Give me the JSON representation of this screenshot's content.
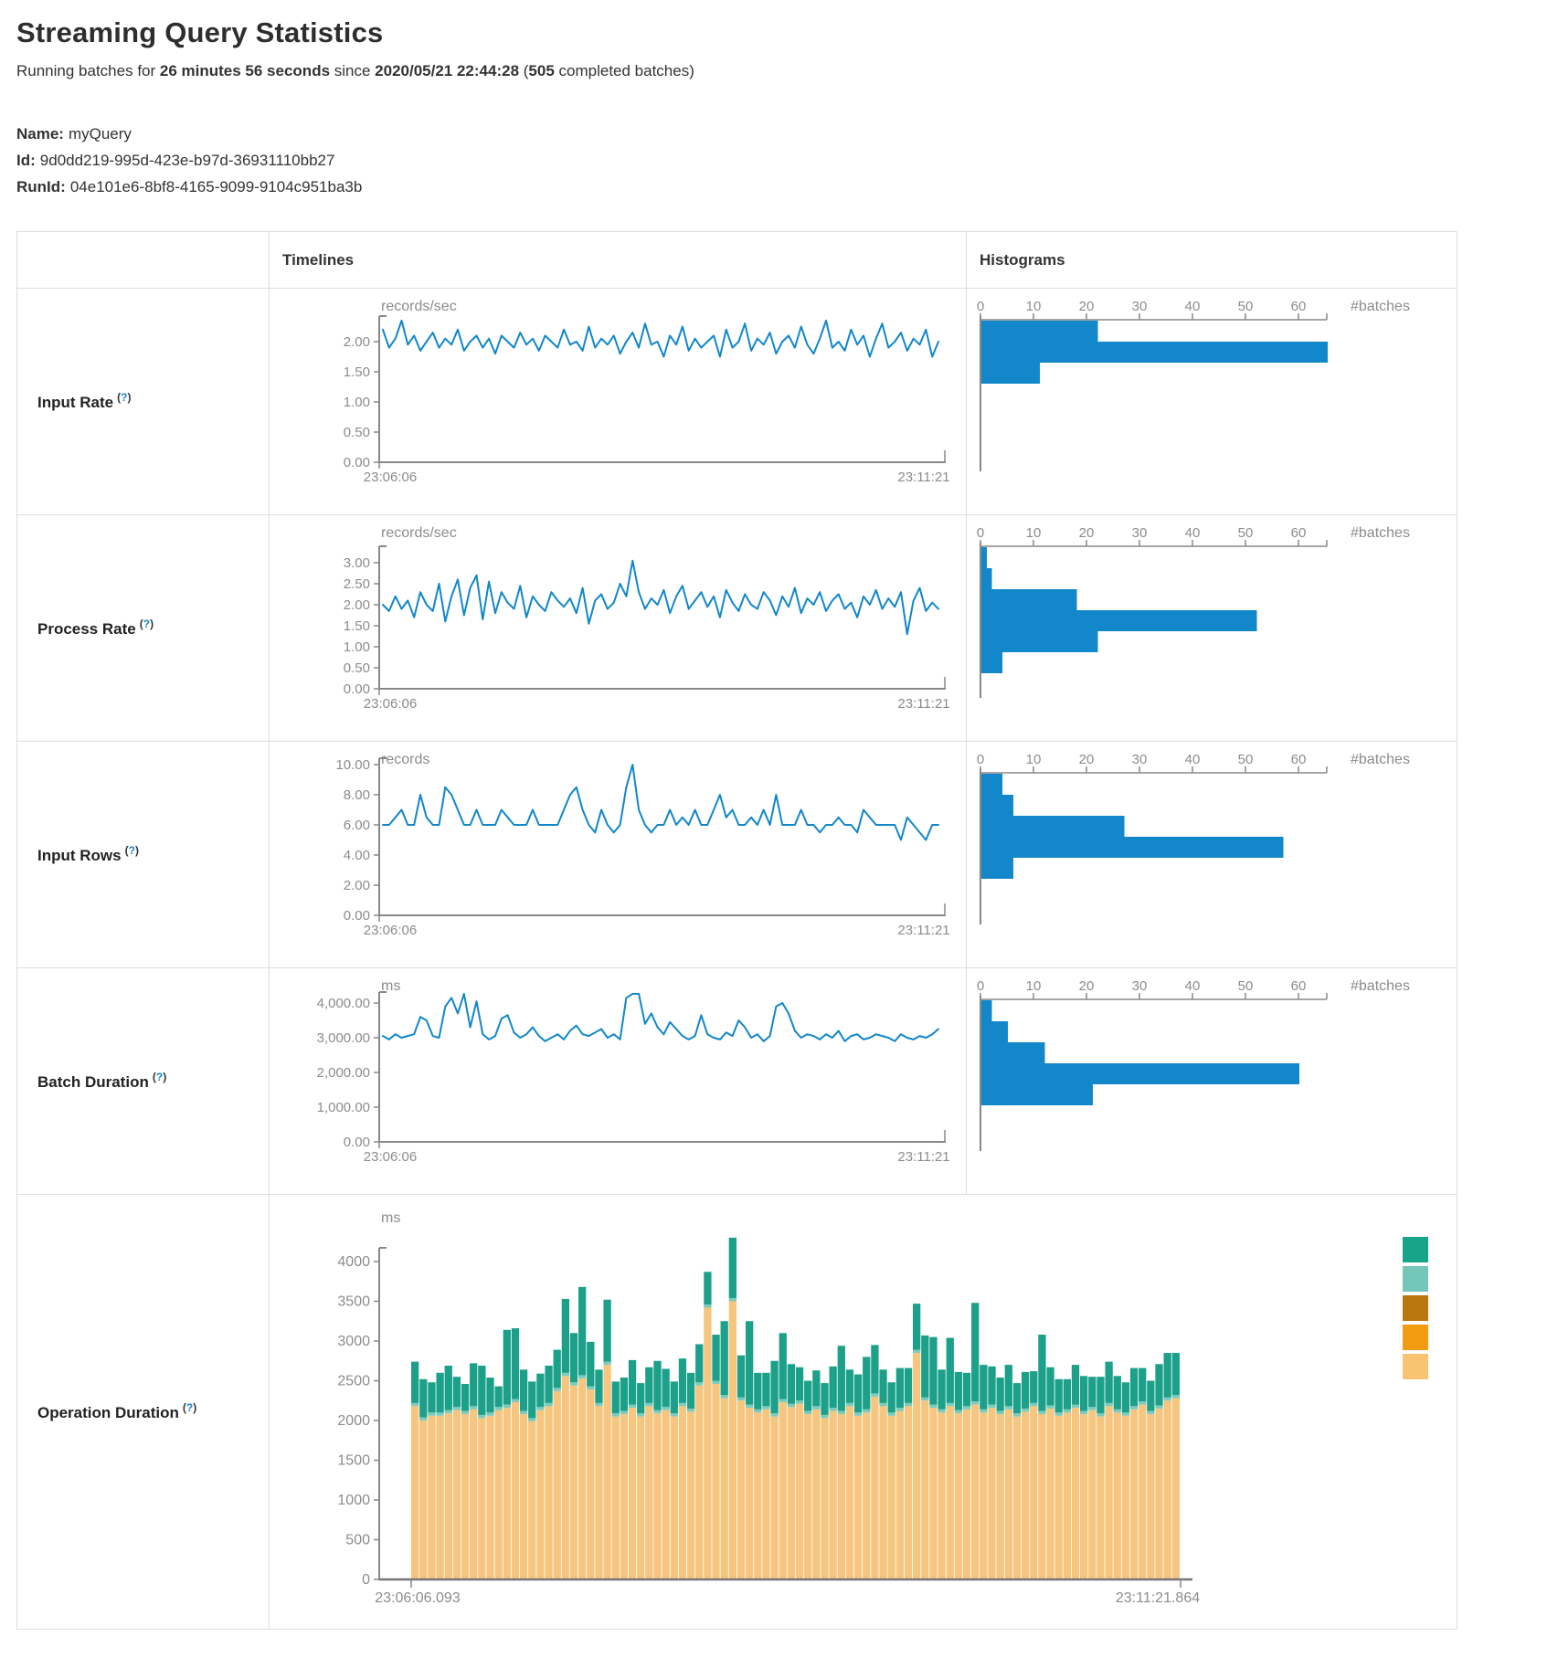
{
  "page": {
    "title": "Streaming Query Statistics",
    "subtitle": {
      "prefix": "Running batches for ",
      "duration": "26 minutes 56 seconds",
      "mid": " since ",
      "timestamp": "2020/05/21 22:44:28",
      "paren": " (",
      "batches": "505",
      "suffix": " completed batches)"
    },
    "meta": [
      {
        "label": "Name:",
        "value": "myQuery"
      },
      {
        "label": "Id:",
        "value": "9d0dd219-995d-423e-b97d-36931110bb27"
      },
      {
        "label": "RunId:",
        "value": "04e101e6-8bf8-4165-9099-9104c951ba3b"
      }
    ]
  },
  "table": {
    "headers": {
      "timelines": "Timelines",
      "histograms": "Histograms"
    },
    "help": {
      "open": "(",
      "q": "?",
      "close": ")"
    }
  },
  "colors": {
    "accent_blue": "#1287c9",
    "axis_gray": "#888888",
    "text_gray": "#8c8c8c",
    "teal": "#1CA089",
    "light_teal": "#7CCBBB",
    "tan": "#F6C57E",
    "legend": [
      "#17A589",
      "#73C6B8",
      "#B9770E",
      "#F39C12",
      "#F8C471"
    ]
  },
  "chart_data": [
    {
      "row": "Input Rate",
      "type": "line",
      "unit": "records/sec",
      "x_start": "23:06:06",
      "x_end": "23:11:21",
      "yticks": [
        "2.00",
        "1.50",
        "1.00",
        "0.50",
        "0.00"
      ],
      "ylim": [
        0,
        2.5
      ],
      "values": [
        2.2,
        1.9,
        2.05,
        2.35,
        1.95,
        2.1,
        1.85,
        2.0,
        2.15,
        1.9,
        2.05,
        1.95,
        2.2,
        1.85,
        2.0,
        2.1,
        1.9,
        2.05,
        1.8,
        2.1,
        2.0,
        1.9,
        2.15,
        1.95,
        2.05,
        1.85,
        2.1,
        2.0,
        1.9,
        2.2,
        1.95,
        2.0,
        1.85,
        2.25,
        1.9,
        2.05,
        1.95,
        2.1,
        1.8,
        2.0,
        2.15,
        1.9,
        2.3,
        1.95,
        2.0,
        1.75,
        2.1,
        1.95,
        2.25,
        1.85,
        2.05,
        1.9,
        2.0,
        2.1,
        1.75,
        2.2,
        1.9,
        2.0,
        2.3,
        1.85,
        2.05,
        1.95,
        2.15,
        1.8,
        2.0,
        2.1,
        1.9,
        2.25,
        1.95,
        1.8,
        2.05,
        2.35,
        1.9,
        2.0,
        1.85,
        2.2,
        1.95,
        2.1,
        1.75,
        2.05,
        2.3,
        1.9,
        2.0,
        2.15,
        1.85,
        2.05,
        1.95,
        2.2,
        1.75,
        2.0
      ],
      "histogram": {
        "xlabel": "#batches",
        "ticks": [
          "0",
          "10",
          "20",
          "30",
          "40",
          "50",
          "60"
        ],
        "bins": [
          22,
          66,
          11
        ]
      }
    },
    {
      "row": "Process Rate",
      "type": "line",
      "unit": "records/sec",
      "x_start": "23:06:06",
      "x_end": "23:11:21",
      "yticks": [
        "3.00",
        "2.50",
        "2.00",
        "1.50",
        "1.00",
        "0.50",
        "0.00"
      ],
      "ylim": [
        0,
        3.5
      ],
      "values": [
        2.0,
        1.85,
        2.2,
        1.9,
        2.1,
        1.7,
        2.3,
        2.0,
        1.85,
        2.5,
        1.6,
        2.2,
        2.6,
        1.75,
        2.4,
        2.7,
        1.65,
        2.55,
        1.8,
        2.3,
        2.05,
        1.9,
        2.45,
        1.7,
        2.2,
        2.0,
        1.85,
        2.3,
        2.1,
        1.95,
        2.15,
        1.8,
        2.4,
        1.55,
        2.1,
        2.25,
        1.9,
        2.05,
        2.5,
        2.2,
        3.05,
        2.3,
        1.9,
        2.15,
        2.0,
        2.35,
        1.8,
        2.2,
        2.45,
        1.9,
        2.1,
        2.3,
        1.95,
        2.2,
        1.7,
        2.35,
        2.05,
        1.85,
        2.25,
        2.0,
        1.9,
        2.3,
        2.1,
        1.75,
        2.2,
        1.95,
        2.4,
        1.8,
        2.15,
        2.0,
        2.3,
        1.85,
        2.1,
        2.25,
        1.9,
        2.05,
        1.7,
        2.2,
        2.0,
        2.35,
        1.9,
        2.15,
        1.95,
        2.3,
        1.3,
        2.1,
        2.4,
        1.85,
        2.05,
        1.9
      ],
      "histogram": {
        "xlabel": "#batches",
        "ticks": [
          "0",
          "10",
          "20",
          "30",
          "40",
          "50",
          "60"
        ],
        "bins": [
          1,
          2,
          18,
          52,
          22,
          4
        ]
      }
    },
    {
      "row": "Input Rows",
      "type": "line",
      "unit": "records",
      "x_start": "23:06:06",
      "x_end": "23:11:21",
      "yticks": [
        "10.00",
        "8.00",
        "6.00",
        "4.00",
        "2.00",
        "0.00"
      ],
      "ylim": [
        0,
        10
      ],
      "values": [
        6,
        6,
        6.5,
        7,
        6,
        6,
        8,
        6.5,
        6,
        6,
        8.5,
        8,
        7,
        6,
        6,
        7,
        6,
        6,
        6,
        7,
        6.5,
        6,
        6,
        6,
        7,
        6,
        6,
        6,
        6,
        7,
        8,
        8.5,
        7,
        6,
        5.5,
        7,
        6,
        5.5,
        6,
        8.5,
        10,
        7,
        6,
        5.5,
        6,
        6,
        7,
        6,
        6.5,
        6,
        7,
        6,
        6,
        7,
        8,
        6.5,
        7,
        6,
        6,
        6.5,
        6,
        7,
        6,
        8,
        6,
        6,
        6,
        7,
        6,
        6,
        5.5,
        6,
        6,
        6.5,
        6,
        6,
        5.5,
        7,
        6.5,
        6,
        6,
        6,
        6,
        5,
        6.5,
        6,
        5.5,
        5,
        6,
        6
      ],
      "histogram": {
        "xlabel": "#batches",
        "ticks": [
          "0",
          "10",
          "20",
          "30",
          "40",
          "50",
          "60"
        ],
        "bins": [
          4,
          6,
          27,
          57,
          6
        ]
      }
    },
    {
      "row": "Batch Duration",
      "type": "line",
      "unit": "ms",
      "x_start": "23:06:06",
      "x_end": "23:11:21",
      "yticks": [
        "4,000.00",
        "3,000.00",
        "2,000.00",
        "1,000.00",
        "0.00"
      ],
      "ylim": [
        0,
        5000
      ],
      "values": [
        3050,
        2950,
        3100,
        3000,
        3050,
        3100,
        3600,
        3500,
        3050,
        3000,
        3900,
        4150,
        3700,
        4300,
        3300,
        4050,
        3100,
        2950,
        3050,
        3550,
        3650,
        3150,
        3000,
        3100,
        3300,
        3050,
        2900,
        3000,
        3100,
        2950,
        3200,
        3350,
        3100,
        3050,
        3150,
        3250,
        3000,
        3100,
        2950,
        4150,
        4800,
        4300,
        3400,
        3700,
        3300,
        3100,
        3450,
        3250,
        3050,
        2950,
        3050,
        3650,
        3100,
        3000,
        2950,
        3150,
        3050,
        3500,
        3300,
        3000,
        3100,
        2900,
        3050,
        3900,
        4000,
        3700,
        3200,
        3000,
        3100,
        3050,
        2950,
        3100,
        3000,
        3200,
        2900,
        3050,
        3100,
        2950,
        3000,
        3100,
        3050,
        3000,
        2900,
        3100,
        3000,
        2950,
        3050,
        3000,
        3100,
        3250
      ],
      "histogram": {
        "xlabel": "#batches",
        "ticks": [
          "0",
          "10",
          "20",
          "30",
          "40",
          "50",
          "60"
        ],
        "bins": [
          2,
          5,
          12,
          60,
          21
        ]
      }
    },
    {
      "row": "Operation Duration",
      "type": "stacked-bar",
      "unit": "ms",
      "x_start": "23:06:06.093",
      "x_end": "23:11:21.864",
      "yticks": [
        "4000",
        "3500",
        "3000",
        "2500",
        "2000",
        "1500",
        "1000",
        "500",
        "0"
      ],
      "ylim": [
        0,
        4300
      ],
      "sliver_ms": 40,
      "bars": [
        [
          2180,
          520
        ],
        [
          2000,
          480
        ],
        [
          2060,
          380
        ],
        [
          2060,
          500
        ],
        [
          2090,
          560
        ],
        [
          2130,
          380
        ],
        [
          2080,
          340
        ],
        [
          2140,
          540
        ],
        [
          2030,
          620
        ],
        [
          2060,
          440
        ],
        [
          2130,
          260
        ],
        [
          2160,
          940
        ],
        [
          2230,
          890
        ],
        [
          2080,
          520
        ],
        [
          1990,
          460
        ],
        [
          2130,
          420
        ],
        [
          2180,
          470
        ],
        [
          2370,
          480
        ],
        [
          2560,
          930
        ],
        [
          2440,
          620
        ],
        [
          2530,
          1110
        ],
        [
          2390,
          560
        ],
        [
          2180,
          420
        ],
        [
          2700,
          780
        ],
        [
          2050,
          400
        ],
        [
          2080,
          420
        ],
        [
          2160,
          560
        ],
        [
          2050,
          380
        ],
        [
          2180,
          450
        ],
        [
          2090,
          620
        ],
        [
          2130,
          480
        ],
        [
          2050,
          400
        ],
        [
          2180,
          560
        ],
        [
          2110,
          450
        ],
        [
          2440,
          480
        ],
        [
          3420,
          410
        ],
        [
          2460,
          580
        ],
        [
          2280,
          930
        ],
        [
          3500,
          760
        ],
        [
          2250,
          530
        ],
        [
          2160,
          1050
        ],
        [
          2100,
          460
        ],
        [
          2140,
          420
        ],
        [
          2050,
          660
        ],
        [
          2230,
          830
        ],
        [
          2170,
          500
        ],
        [
          2210,
          420
        ],
        [
          2080,
          380
        ],
        [
          2140,
          450
        ],
        [
          2030,
          400
        ],
        [
          2120,
          520
        ],
        [
          2080,
          820
        ],
        [
          2180,
          420
        ],
        [
          2060,
          480
        ],
        [
          2100,
          660
        ],
        [
          2300,
          610
        ],
        [
          2180,
          420
        ],
        [
          2060,
          380
        ],
        [
          2120,
          500
        ],
        [
          2180,
          440
        ],
        [
          2850,
          580
        ],
        [
          2250,
          780
        ],
        [
          2160,
          850
        ],
        [
          2100,
          500
        ],
        [
          2180,
          820
        ],
        [
          2090,
          480
        ],
        [
          2140,
          420
        ],
        [
          2200,
          1240
        ],
        [
          2100,
          560
        ],
        [
          2160,
          480
        ],
        [
          2080,
          420
        ],
        [
          2140,
          520
        ],
        [
          2050,
          380
        ],
        [
          2110,
          460
        ],
        [
          2180,
          400
        ],
        [
          2080,
          960
        ],
        [
          2150,
          480
        ],
        [
          2060,
          420
        ],
        [
          2100,
          380
        ],
        [
          2160,
          500
        ],
        [
          2080,
          440
        ],
        [
          2130,
          380
        ],
        [
          2050,
          460
        ],
        [
          2180,
          520
        ],
        [
          2100,
          420
        ],
        [
          2060,
          380
        ],
        [
          2140,
          480
        ],
        [
          2200,
          420
        ],
        [
          2080,
          380
        ],
        [
          2150,
          520
        ],
        [
          2250,
          560
        ],
        [
          2280,
          530
        ]
      ]
    }
  ]
}
